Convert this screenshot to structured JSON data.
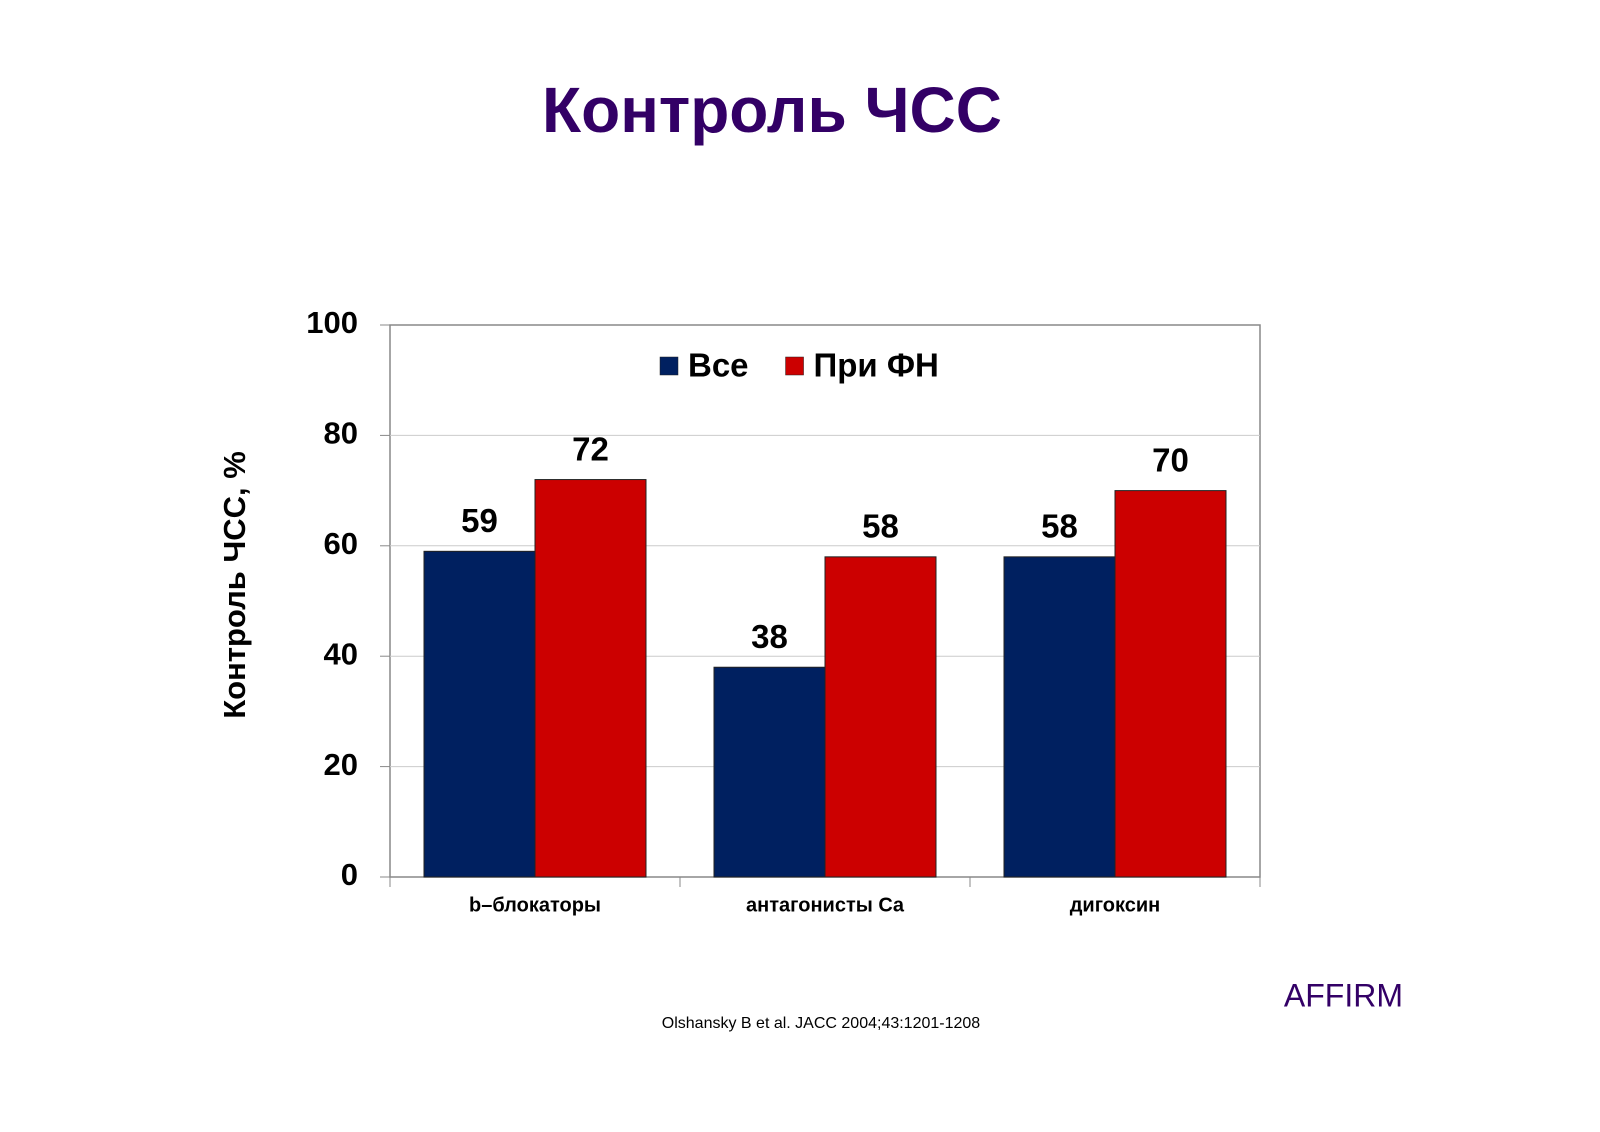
{
  "chart_data": {
    "type": "bar",
    "title": "Контроль ЧСС",
    "ylabel": "Контроль ЧСС, %",
    "categories": [
      "b–блокаторы",
      "антагонисты Ca",
      "дигоксин"
    ],
    "series": [
      {
        "name": "Все",
        "color": "#002060",
        "values": [
          59,
          38,
          58
        ]
      },
      {
        "name": "При ФН",
        "color": "#cc0000",
        "values": [
          72,
          58,
          70
        ]
      }
    ],
    "ylim": [
      0,
      100
    ],
    "yticks": [
      0,
      20,
      40,
      60,
      80,
      100
    ],
    "grid": true,
    "legend": "top",
    "note": "AFFIRM",
    "source": "Olshansky B et al. JACC 2004;43:1201-1208"
  }
}
